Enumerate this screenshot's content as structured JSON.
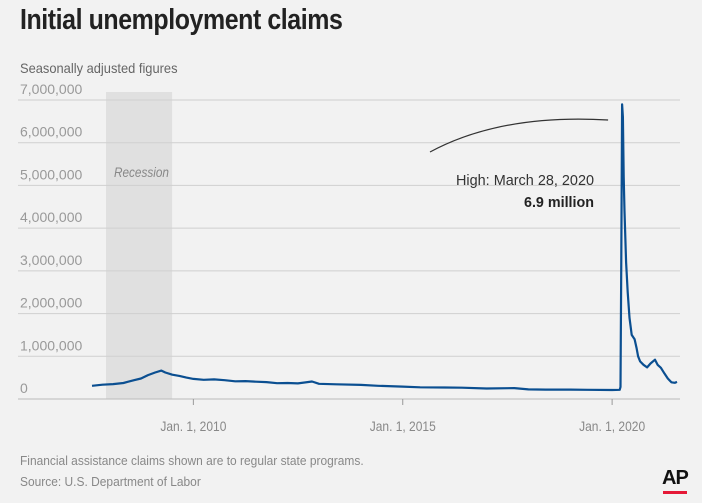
{
  "header": {
    "title": "Initial unemployment claims",
    "subtitle": "Seasonally adjusted figures"
  },
  "footer": {
    "note": "Financial assistance claims shown are to regular state programs.",
    "source": "Source: U.S. Department of Labor",
    "logo": "AP"
  },
  "colors": {
    "line": "#0b4f91",
    "recession_shade": "#e0e0e0",
    "grid": "#cfcfcf",
    "logo_accent": "#e51937"
  },
  "chart_data": {
    "type": "line",
    "title": "Initial unemployment claims",
    "subtitle": "Seasonally adjusted figures",
    "xlim": [
      "2007-08-01",
      "2021-08-15"
    ],
    "ylim": [
      0,
      7000000
    ],
    "grid": true,
    "y_ticks": [
      {
        "value": 0,
        "label": "0"
      },
      {
        "value": 1000000,
        "label": "1,000,000"
      },
      {
        "value": 2000000,
        "label": "2,000,000"
      },
      {
        "value": 3000000,
        "label": "3,000,000"
      },
      {
        "value": 4000000,
        "label": "4,000,000"
      },
      {
        "value": 5000000,
        "label": "5,000,000"
      },
      {
        "value": 6000000,
        "label": "6,000,000"
      },
      {
        "value": 7000000,
        "label": "7,000,000"
      }
    ],
    "x_ticks": [
      {
        "value": "2010-01-01",
        "label": "Jan. 1, 2010"
      },
      {
        "value": "2015-01-01",
        "label": "Jan. 1, 2015"
      },
      {
        "value": "2020-01-01",
        "label": "Jan. 1, 2020"
      }
    ],
    "shaded_regions": [
      {
        "start": "2007-12-01",
        "end": "2009-06-30",
        "label": "Recession"
      }
    ],
    "annotation": {
      "line1": "High: March 28, 2020",
      "line2": "6.9 million",
      "date": "2020-03-28",
      "value": 6900000
    },
    "series": [
      {
        "points": [
          [
            "2007-08-01",
            310000
          ],
          [
            "2007-11-01",
            335000
          ],
          [
            "2008-02-01",
            350000
          ],
          [
            "2008-05-01",
            375000
          ],
          [
            "2008-08-01",
            440000
          ],
          [
            "2008-10-01",
            480000
          ],
          [
            "2008-12-01",
            560000
          ],
          [
            "2009-02-01",
            620000
          ],
          [
            "2009-03-28",
            665000
          ],
          [
            "2009-05-01",
            620000
          ],
          [
            "2009-07-01",
            570000
          ],
          [
            "2009-09-01",
            540000
          ],
          [
            "2009-11-01",
            500000
          ],
          [
            "2010-01-01",
            470000
          ],
          [
            "2010-04-01",
            450000
          ],
          [
            "2010-07-01",
            460000
          ],
          [
            "2010-10-01",
            440000
          ],
          [
            "2011-01-01",
            415000
          ],
          [
            "2011-04-01",
            420000
          ],
          [
            "2011-07-01",
            405000
          ],
          [
            "2011-10-01",
            395000
          ],
          [
            "2012-01-01",
            370000
          ],
          [
            "2012-04-01",
            375000
          ],
          [
            "2012-07-01",
            365000
          ],
          [
            "2012-11-01",
            410000
          ],
          [
            "2013-01-01",
            355000
          ],
          [
            "2013-06-01",
            345000
          ],
          [
            "2014-01-01",
            330000
          ],
          [
            "2014-06-01",
            310000
          ],
          [
            "2015-01-01",
            290000
          ],
          [
            "2015-06-01",
            275000
          ],
          [
            "2016-01-01",
            270000
          ],
          [
            "2016-06-01",
            265000
          ],
          [
            "2017-01-01",
            245000
          ],
          [
            "2017-09-01",
            255000
          ],
          [
            "2018-01-01",
            225000
          ],
          [
            "2018-06-01",
            220000
          ],
          [
            "2019-01-01",
            220000
          ],
          [
            "2019-06-01",
            215000
          ],
          [
            "2020-01-01",
            210000
          ],
          [
            "2020-03-07",
            215000
          ],
          [
            "2020-03-14",
            280000
          ],
          [
            "2020-03-21",
            3300000
          ],
          [
            "2020-03-28",
            6900000
          ],
          [
            "2020-04-04",
            6600000
          ],
          [
            "2020-04-11",
            5200000
          ],
          [
            "2020-04-18",
            4400000
          ],
          [
            "2020-04-25",
            3800000
          ],
          [
            "2020-05-02",
            3200000
          ],
          [
            "2020-05-16",
            2500000
          ],
          [
            "2020-06-01",
            1900000
          ],
          [
            "2020-06-20",
            1500000
          ],
          [
            "2020-07-15",
            1400000
          ],
          [
            "2020-08-01",
            1200000
          ],
          [
            "2020-08-15",
            1000000
          ],
          [
            "2020-09-01",
            880000
          ],
          [
            "2020-10-01",
            800000
          ],
          [
            "2020-11-01",
            740000
          ],
          [
            "2020-12-01",
            830000
          ],
          [
            "2021-01-09",
            920000
          ],
          [
            "2021-02-01",
            800000
          ],
          [
            "2021-03-01",
            730000
          ],
          [
            "2021-04-01",
            600000
          ],
          [
            "2021-05-01",
            480000
          ],
          [
            "2021-06-01",
            390000
          ],
          [
            "2021-07-01",
            380000
          ],
          [
            "2021-07-20",
            400000
          ]
        ]
      }
    ]
  }
}
